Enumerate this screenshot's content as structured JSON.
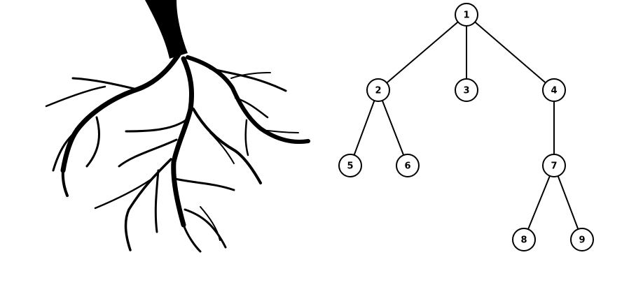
{
  "colors": {
    "background": "#ffffff",
    "ink": "#000000"
  },
  "root_illustration": {
    "icon": "plant-root-silhouette-icon"
  },
  "tree": {
    "nodes": [
      {
        "id": "1",
        "label": "1"
      },
      {
        "id": "2",
        "label": "2"
      },
      {
        "id": "3",
        "label": "3"
      },
      {
        "id": "4",
        "label": "4"
      },
      {
        "id": "5",
        "label": "5"
      },
      {
        "id": "6",
        "label": "6"
      },
      {
        "id": "7",
        "label": "7"
      },
      {
        "id": "8",
        "label": "8"
      },
      {
        "id": "9",
        "label": "9"
      }
    ],
    "edges": [
      [
        "1",
        "2"
      ],
      [
        "1",
        "3"
      ],
      [
        "1",
        "4"
      ],
      [
        "2",
        "5"
      ],
      [
        "2",
        "6"
      ],
      [
        "4",
        "7"
      ],
      [
        "7",
        "8"
      ],
      [
        "7",
        "9"
      ]
    ]
  }
}
